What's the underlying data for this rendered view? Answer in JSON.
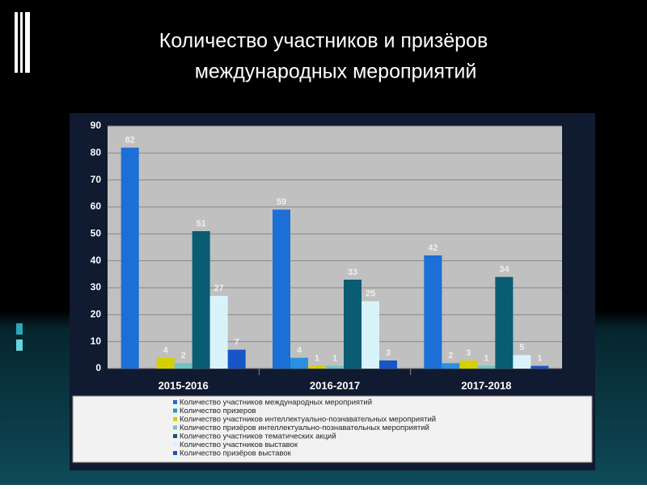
{
  "chart_data": {
    "type": "bar",
    "title": [
      "Количество  участников  и  призёров",
      "международных  мероприятий"
    ],
    "categories": [
      "2015-2016",
      "2016-2017",
      "2017-2018"
    ],
    "series": [
      {
        "name": "Количество участников международных мероприятий",
        "color": "#1c6fd6",
        "values": [
          82,
          59,
          42
        ]
      },
      {
        "name": "Количество призеров",
        "color": "#2a8fe0",
        "values": [
          null,
          4,
          2
        ]
      },
      {
        "name": "Количество участников интеллектуально-познавательных мероприятий",
        "color": "#d6d000",
        "values": [
          4,
          1,
          3
        ]
      },
      {
        "name": "Количество призёров интеллектуально-познавательных мероприятий",
        "color": "#72c2c4",
        "values": [
          2,
          1,
          1
        ]
      },
      {
        "name": "Количество участников тематических акций",
        "color": "#0a5c72",
        "values": [
          51,
          33,
          34
        ]
      },
      {
        "name": "Количество участников выставок",
        "color": "#d9f3fa",
        "values": [
          27,
          25,
          5
        ]
      },
      {
        "name": "Количество призёров выставок",
        "color": "#1656c6",
        "values": [
          7,
          3,
          1
        ]
      }
    ],
    "ylim": [
      0,
      90
    ],
    "yticks": [
      0,
      10,
      20,
      30,
      40,
      50,
      60,
      70,
      80,
      90
    ],
    "grid": true,
    "legend": "bottom"
  }
}
